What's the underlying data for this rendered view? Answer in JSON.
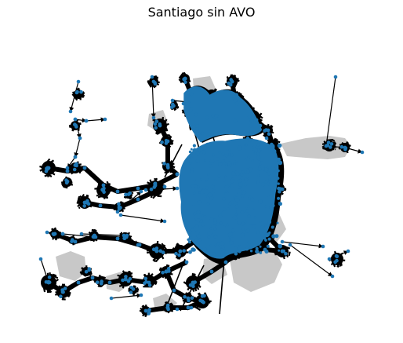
{
  "figure": {
    "title": "Santiago sin AVO"
  },
  "style": {
    "background": "#ffffff",
    "node_color": "#1f77b4",
    "edge_color": "#000000",
    "region_fill": "#c8c8c8"
  },
  "diagram": {
    "type": "directed network graph",
    "arrows": true,
    "region_shapes": 9,
    "dense_core_regions": 3
  }
}
